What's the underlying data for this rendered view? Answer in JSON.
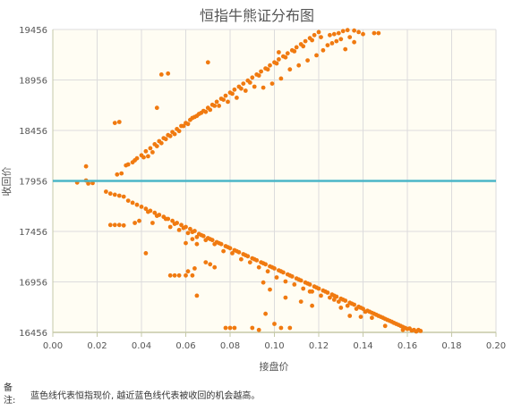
{
  "chart_data": {
    "type": "scatter",
    "title": "恒指牛熊证分布图",
    "xlabel": "接盘价",
    "ylabel": "收回价",
    "xlim": [
      0,
      0.2
    ],
    "ylim": [
      16456,
      19456
    ],
    "x_ticks": [
      "0.00",
      "0.02",
      "0.04",
      "0.06",
      "0.08",
      "0.10",
      "0.12",
      "0.14",
      "0.16",
      "0.18",
      "0.20"
    ],
    "y_ticks": [
      "16456",
      "16956",
      "17456",
      "17956",
      "18456",
      "18956",
      "19456"
    ],
    "reference_line": {
      "y": 17956,
      "color": "#4bb6c8"
    },
    "grid": true,
    "colors": {
      "points": "#f07a10",
      "plot_bg": "#fffdf3",
      "grid": "#dcdcdc",
      "axis": "#c5c9a8"
    },
    "series": [
      {
        "points": [
          [
            0.029,
            18020
          ],
          [
            0.031,
            18030
          ],
          [
            0.034,
            18120
          ],
          [
            0.036,
            18140
          ],
          [
            0.038,
            18180
          ],
          [
            0.04,
            18210
          ],
          [
            0.042,
            18250
          ],
          [
            0.044,
            18280
          ],
          [
            0.046,
            18320
          ],
          [
            0.048,
            18350
          ],
          [
            0.05,
            18380
          ],
          [
            0.052,
            18410
          ],
          [
            0.054,
            18440
          ],
          [
            0.056,
            18470
          ],
          [
            0.058,
            18500
          ],
          [
            0.06,
            18530
          ],
          [
            0.062,
            18560
          ],
          [
            0.064,
            18590
          ],
          [
            0.066,
            18620
          ],
          [
            0.068,
            18650
          ],
          [
            0.07,
            18680
          ],
          [
            0.072,
            18710
          ],
          [
            0.074,
            18740
          ],
          [
            0.076,
            18770
          ],
          [
            0.078,
            18800
          ],
          [
            0.08,
            18830
          ],
          [
            0.082,
            18860
          ],
          [
            0.084,
            18890
          ],
          [
            0.086,
            18920
          ],
          [
            0.088,
            18950
          ],
          [
            0.09,
            18980
          ],
          [
            0.092,
            19010
          ],
          [
            0.094,
            19040
          ],
          [
            0.096,
            19070
          ],
          [
            0.098,
            19100
          ],
          [
            0.1,
            19130
          ],
          [
            0.102,
            19160
          ],
          [
            0.104,
            19190
          ],
          [
            0.106,
            19220
          ],
          [
            0.108,
            19250
          ],
          [
            0.11,
            19280
          ],
          [
            0.112,
            19310
          ],
          [
            0.114,
            19340
          ],
          [
            0.116,
            19370
          ],
          [
            0.118,
            19400
          ],
          [
            0.12,
            19430
          ],
          [
            0.041,
            18190
          ],
          [
            0.043,
            18200
          ],
          [
            0.045,
            18240
          ],
          [
            0.047,
            18300
          ],
          [
            0.049,
            18330
          ],
          [
            0.053,
            18400
          ],
          [
            0.057,
            18450
          ],
          [
            0.061,
            18520
          ],
          [
            0.065,
            18600
          ],
          [
            0.069,
            18640
          ],
          [
            0.073,
            18700
          ],
          [
            0.077,
            18760
          ],
          [
            0.081,
            18820
          ],
          [
            0.085,
            18870
          ],
          [
            0.089,
            18930
          ],
          [
            0.093,
            19000
          ],
          [
            0.097,
            19060
          ],
          [
            0.101,
            19120
          ],
          [
            0.105,
            19180
          ],
          [
            0.109,
            19240
          ],
          [
            0.113,
            19290
          ],
          [
            0.117,
            19350
          ],
          [
            0.121,
            19380
          ],
          [
            0.125,
            19400
          ],
          [
            0.127,
            19410
          ],
          [
            0.129,
            19420
          ],
          [
            0.131,
            19440
          ],
          [
            0.133,
            19450
          ],
          [
            0.136,
            19445
          ],
          [
            0.138,
            19430
          ],
          [
            0.14,
            19410
          ],
          [
            0.134,
            19380
          ],
          [
            0.13,
            19360
          ],
          [
            0.128,
            19340
          ],
          [
            0.124,
            19300
          ],
          [
            0.126,
            19320
          ],
          [
            0.122,
            19250
          ],
          [
            0.119,
            19200
          ],
          [
            0.115,
            19150
          ],
          [
            0.111,
            19100
          ],
          [
            0.107,
            19060
          ],
          [
            0.103,
            18970
          ],
          [
            0.099,
            18920
          ],
          [
            0.095,
            18880
          ],
          [
            0.091,
            18890
          ],
          [
            0.087,
            18850
          ],
          [
            0.083,
            18780
          ],
          [
            0.079,
            18740
          ],
          [
            0.075,
            18700
          ],
          [
            0.071,
            18660
          ],
          [
            0.067,
            18630
          ],
          [
            0.063,
            18580
          ],
          [
            0.059,
            18500
          ],
          [
            0.055,
            18420
          ],
          [
            0.051,
            18370
          ],
          [
            0.037,
            18160
          ],
          [
            0.033,
            18110
          ],
          [
            0.028,
            18530
          ],
          [
            0.03,
            18540
          ],
          [
            0.047,
            18680
          ],
          [
            0.049,
            19010
          ],
          [
            0.052,
            19020
          ],
          [
            0.07,
            19130
          ],
          [
            0.102,
            19230
          ],
          [
            0.132,
            19260
          ],
          [
            0.136,
            19330
          ],
          [
            0.145,
            19420
          ],
          [
            0.147,
            19420
          ]
        ]
      },
      {
        "points": [
          [
            0.011,
            17940
          ],
          [
            0.015,
            17960
          ],
          [
            0.016,
            17930
          ],
          [
            0.018,
            17935
          ],
          [
            0.015,
            18100
          ],
          [
            0.024,
            17850
          ],
          [
            0.026,
            17830
          ],
          [
            0.028,
            17820
          ],
          [
            0.03,
            17810
          ],
          [
            0.032,
            17800
          ],
          [
            0.034,
            17760
          ],
          [
            0.036,
            17740
          ],
          [
            0.038,
            17720
          ],
          [
            0.04,
            17700
          ],
          [
            0.042,
            17680
          ],
          [
            0.044,
            17660
          ],
          [
            0.046,
            17640
          ],
          [
            0.048,
            17620
          ],
          [
            0.05,
            17600
          ],
          [
            0.052,
            17580
          ],
          [
            0.054,
            17560
          ],
          [
            0.056,
            17540
          ],
          [
            0.058,
            17520
          ],
          [
            0.06,
            17500
          ],
          [
            0.062,
            17480
          ],
          [
            0.064,
            17460
          ],
          [
            0.066,
            17430
          ],
          [
            0.068,
            17410
          ],
          [
            0.07,
            17390
          ],
          [
            0.072,
            17370
          ],
          [
            0.074,
            17350
          ],
          [
            0.076,
            17330
          ],
          [
            0.078,
            17310
          ],
          [
            0.08,
            17290
          ],
          [
            0.082,
            17270
          ],
          [
            0.084,
            17250
          ],
          [
            0.086,
            17230
          ],
          [
            0.088,
            17210
          ],
          [
            0.09,
            17190
          ],
          [
            0.092,
            17170
          ],
          [
            0.094,
            17150
          ],
          [
            0.096,
            17130
          ],
          [
            0.098,
            17110
          ],
          [
            0.1,
            17090
          ],
          [
            0.102,
            17070
          ],
          [
            0.104,
            17050
          ],
          [
            0.106,
            17030
          ],
          [
            0.108,
            17010
          ],
          [
            0.11,
            16990
          ],
          [
            0.112,
            16970
          ],
          [
            0.114,
            16950
          ],
          [
            0.116,
            16930
          ],
          [
            0.118,
            16910
          ],
          [
            0.12,
            16890
          ],
          [
            0.122,
            16870
          ],
          [
            0.124,
            16850
          ],
          [
            0.126,
            16830
          ],
          [
            0.128,
            16810
          ],
          [
            0.13,
            16790
          ],
          [
            0.132,
            16770
          ],
          [
            0.134,
            16750
          ],
          [
            0.136,
            16730
          ],
          [
            0.138,
            16710
          ],
          [
            0.14,
            16690
          ],
          [
            0.142,
            16670
          ],
          [
            0.144,
            16650
          ],
          [
            0.146,
            16630
          ],
          [
            0.148,
            16610
          ],
          [
            0.15,
            16590
          ],
          [
            0.152,
            16570
          ],
          [
            0.154,
            16550
          ],
          [
            0.156,
            16530
          ],
          [
            0.158,
            16510
          ],
          [
            0.16,
            16490
          ],
          [
            0.162,
            16475
          ],
          [
            0.164,
            16465
          ],
          [
            0.166,
            16470
          ],
          [
            0.043,
            17650
          ],
          [
            0.047,
            17610
          ],
          [
            0.051,
            17580
          ],
          [
            0.055,
            17530
          ],
          [
            0.059,
            17490
          ],
          [
            0.063,
            17450
          ],
          [
            0.067,
            17420
          ],
          [
            0.071,
            17380
          ],
          [
            0.075,
            17340
          ],
          [
            0.079,
            17300
          ],
          [
            0.083,
            17260
          ],
          [
            0.087,
            17220
          ],
          [
            0.091,
            17180
          ],
          [
            0.095,
            17140
          ],
          [
            0.099,
            17100
          ],
          [
            0.103,
            17060
          ],
          [
            0.107,
            17020
          ],
          [
            0.111,
            16980
          ],
          [
            0.115,
            16940
          ],
          [
            0.119,
            16900
          ],
          [
            0.123,
            16860
          ],
          [
            0.127,
            16820
          ],
          [
            0.131,
            16780
          ],
          [
            0.135,
            16740
          ],
          [
            0.139,
            16700
          ],
          [
            0.143,
            16660
          ],
          [
            0.147,
            16620
          ],
          [
            0.151,
            16580
          ],
          [
            0.155,
            16540
          ],
          [
            0.159,
            16500
          ],
          [
            0.163,
            16480
          ],
          [
            0.026,
            17520
          ],
          [
            0.028,
            17520
          ],
          [
            0.03,
            17520
          ],
          [
            0.032,
            17515
          ],
          [
            0.037,
            17540
          ],
          [
            0.039,
            17560
          ],
          [
            0.045,
            17540
          ],
          [
            0.053,
            17500
          ],
          [
            0.057,
            17470
          ],
          [
            0.061,
            17440
          ],
          [
            0.065,
            17400
          ],
          [
            0.069,
            17370
          ],
          [
            0.073,
            17330
          ],
          [
            0.077,
            17260
          ],
          [
            0.081,
            17240
          ],
          [
            0.085,
            17180
          ],
          [
            0.089,
            17150
          ],
          [
            0.093,
            17100
          ],
          [
            0.097,
            17060
          ],
          [
            0.101,
            17000
          ],
          [
            0.105,
            16960
          ],
          [
            0.109,
            16930
          ],
          [
            0.113,
            16890
          ],
          [
            0.117,
            16860
          ],
          [
            0.121,
            16820
          ],
          [
            0.125,
            16800
          ],
          [
            0.129,
            16760
          ],
          [
            0.133,
            16720
          ],
          [
            0.137,
            16690
          ],
          [
            0.141,
            16660
          ],
          [
            0.145,
            16640
          ],
          [
            0.149,
            16600
          ],
          [
            0.153,
            16560
          ],
          [
            0.157,
            16520
          ],
          [
            0.161,
            16495
          ],
          [
            0.053,
            17020
          ],
          [
            0.055,
            17020
          ],
          [
            0.057,
            17020
          ],
          [
            0.06,
            17020
          ],
          [
            0.063,
            17020
          ],
          [
            0.064,
            17090
          ],
          [
            0.061,
            17060
          ],
          [
            0.069,
            17150
          ],
          [
            0.071,
            17130
          ],
          [
            0.073,
            17100
          ],
          [
            0.063,
            17380
          ],
          [
            0.065,
            17330
          ],
          [
            0.06,
            17340
          ],
          [
            0.042,
            17240
          ],
          [
            0.065,
            16820
          ],
          [
            0.078,
            16500
          ],
          [
            0.08,
            16500
          ],
          [
            0.082,
            16500
          ],
          [
            0.09,
            16500
          ],
          [
            0.093,
            16480
          ],
          [
            0.096,
            16640
          ],
          [
            0.1,
            16540
          ],
          [
            0.103,
            16500
          ],
          [
            0.107,
            16500
          ],
          [
            0.105,
            16800
          ],
          [
            0.098,
            16880
          ],
          [
            0.095,
            16950
          ],
          [
            0.112,
            16760
          ],
          [
            0.117,
            16720
          ],
          [
            0.116,
            16860
          ],
          [
            0.127,
            16780
          ],
          [
            0.13,
            16700
          ],
          [
            0.134,
            16620
          ],
          [
            0.139,
            16610
          ],
          [
            0.144,
            16600
          ],
          [
            0.15,
            16520
          ],
          [
            0.158,
            16480
          ],
          [
            0.165,
            16480
          ]
        ]
      }
    ]
  },
  "footnote": {
    "label": "备注:",
    "text": "蓝色线代表恒指现价, 越近蓝色线代表被收回的机会越高。"
  }
}
